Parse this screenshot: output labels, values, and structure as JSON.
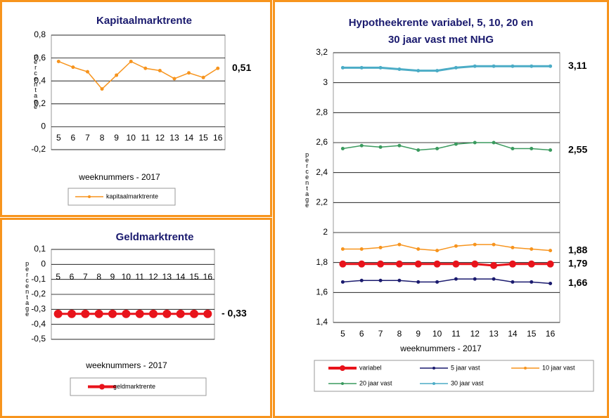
{
  "chart_data": [
    {
      "type": "line",
      "title": "Kapitaalmarktrente",
      "y_label": "percentage",
      "x_label": "weeknummers - 2017",
      "categories": [
        "5",
        "6",
        "7",
        "8",
        "9",
        "10",
        "11",
        "12",
        "13",
        "14",
        "15",
        "16"
      ],
      "series": [
        {
          "name": "kapitaalmarktrente",
          "color": "#f7941d",
          "end_label": "0,51",
          "values": [
            0.57,
            0.52,
            0.48,
            0.33,
            0.45,
            0.57,
            0.51,
            0.49,
            0.42,
            0.47,
            0.43,
            0.51
          ]
        }
      ],
      "ylim": [
        -0.2,
        0.8
      ],
      "yticks": [
        {
          "value": -0.2,
          "label": "-0,2"
        },
        0,
        {
          "value": 0.2,
          "label": "0,2"
        },
        {
          "value": 0.4,
          "label": "0,4"
        },
        {
          "value": 0.6,
          "label": "0,6"
        },
        {
          "value": 0.8,
          "label": "0,8"
        }
      ],
      "grid": true,
      "legend": "bottom"
    },
    {
      "type": "line",
      "title": "Geldmarktrente",
      "y_label": "percentage",
      "x_label": "weeknummers - 2017",
      "categories": [
        "5",
        "6",
        "7",
        "8",
        "9",
        "10",
        "11",
        "12",
        "13",
        "14",
        "15",
        "16"
      ],
      "series": [
        {
          "name": "geldmarktrente",
          "color": "#e8131b",
          "end_label": "- 0,33",
          "values": [
            -0.33,
            -0.33,
            -0.33,
            -0.33,
            -0.33,
            -0.33,
            -0.33,
            -0.33,
            -0.33,
            -0.33,
            -0.33,
            -0.33
          ]
        }
      ],
      "ylim": [
        -0.5,
        0.1
      ],
      "yticks": [
        {
          "value": -0.5,
          "label": "-0,5"
        },
        {
          "value": -0.4,
          "label": "-0,4"
        },
        {
          "value": -0.3,
          "label": "-0,3"
        },
        {
          "value": -0.2,
          "label": "-0,2"
        },
        {
          "value": -0.1,
          "label": "-0,1"
        },
        0,
        {
          "value": 0.1,
          "label": "0,1"
        }
      ],
      "grid": true,
      "legend": "bottom"
    },
    {
      "type": "line",
      "title": [
        "Hypotheekrente variabel, 5, 10, 20 en",
        "30 jaar vast met NHG"
      ],
      "y_label": "percentage",
      "x_label": "weeknummers - 2017",
      "categories": [
        "5",
        "6",
        "7",
        "8",
        "9",
        "10",
        "11",
        "12",
        "13",
        "14",
        "15",
        "16"
      ],
      "series": [
        {
          "name": "variabel",
          "color": "#e8131b",
          "end_label": "1,79",
          "values": [
            1.79,
            1.79,
            1.79,
            1.79,
            1.79,
            1.79,
            1.79,
            1.79,
            1.78,
            1.79,
            1.79,
            1.79
          ]
        },
        {
          "name": "5 jaar vast",
          "color": "#1a1a6e",
          "end_label": "1,66",
          "values": [
            1.67,
            1.68,
            1.68,
            1.68,
            1.67,
            1.67,
            1.69,
            1.69,
            1.69,
            1.67,
            1.67,
            1.66
          ]
        },
        {
          "name": "10 jaar vast",
          "color": "#f7941d",
          "end_label": "1,88",
          "values": [
            1.89,
            1.89,
            1.9,
            1.92,
            1.89,
            1.88,
            1.91,
            1.92,
            1.92,
            1.9,
            1.89,
            1.88
          ]
        },
        {
          "name": "20 jaar vast",
          "color": "#3a9a5e",
          "end_label": "2,55",
          "values": [
            2.56,
            2.58,
            2.57,
            2.58,
            2.55,
            2.56,
            2.59,
            2.6,
            2.6,
            2.56,
            2.56,
            2.55
          ]
        },
        {
          "name": "30 jaar vast",
          "color": "#4bacc6",
          "end_label": "3,11",
          "values": [
            3.1,
            3.1,
            3.1,
            3.09,
            3.08,
            3.08,
            3.1,
            3.11,
            3.11,
            3.11,
            3.11,
            3.11
          ]
        }
      ],
      "ylim": [
        1.4,
        3.2
      ],
      "yticks": [
        {
          "value": 1.4,
          "label": "1,4"
        },
        {
          "value": 1.6,
          "label": "1,6"
        },
        {
          "value": 1.8,
          "label": "1,8"
        },
        2,
        {
          "value": 2.2,
          "label": "2,2"
        },
        {
          "value": 2.4,
          "label": "2,4"
        },
        {
          "value": 2.6,
          "label": "2,6"
        },
        {
          "value": 2.8,
          "label": "2,8"
        },
        3,
        {
          "value": 3.2,
          "label": "3,2"
        }
      ],
      "grid": true,
      "legend": "bottom"
    }
  ]
}
